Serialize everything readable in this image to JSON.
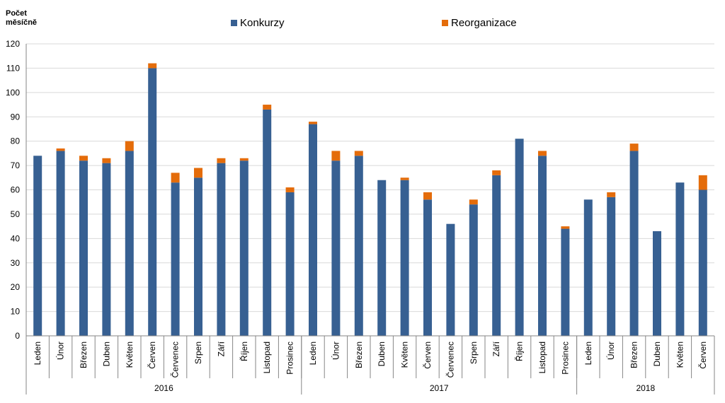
{
  "colors": {
    "konkurzy": "#376092",
    "reorganizace": "#e46c0a"
  },
  "chart_data": {
    "type": "bar",
    "stacked": true,
    "ylabel": "Počet\nměsíčně",
    "ylim": [
      0,
      120
    ],
    "yticks": [
      0,
      10,
      20,
      30,
      40,
      50,
      60,
      70,
      80,
      90,
      100,
      110,
      120
    ],
    "grid": true,
    "legend_position": "top",
    "categories": [
      "Leden",
      "Únor",
      "Březen",
      "Duben",
      "Květen",
      "Červen",
      "Červenec",
      "Srpen",
      "Září",
      "Říjen",
      "Listopad",
      "Prosinec",
      "Leden",
      "Únor",
      "Březen",
      "Duben",
      "Květen",
      "Červen",
      "Červenec",
      "Srpen",
      "Září",
      "Říjen",
      "Listopad",
      "Prosinec",
      "Leden",
      "Únor",
      "Březen",
      "Duben",
      "Květen",
      "Červen"
    ],
    "groups": [
      {
        "label": "2016",
        "count": 12
      },
      {
        "label": "2017",
        "count": 12
      },
      {
        "label": "2018",
        "count": 6
      }
    ],
    "series": [
      {
        "name": "Konkurzy",
        "values": [
          74,
          76,
          72,
          71,
          76,
          110,
          63,
          65,
          71,
          72,
          93,
          59,
          87,
          72,
          74,
          64,
          64,
          56,
          46,
          54,
          66,
          81,
          74,
          44,
          56,
          57,
          76,
          43,
          63,
          60
        ]
      },
      {
        "name": "Reorganizace",
        "values": [
          0,
          1,
          2,
          2,
          4,
          2,
          4,
          4,
          2,
          1,
          2,
          2,
          1,
          4,
          2,
          0,
          1,
          3,
          0,
          2,
          2,
          0,
          2,
          1,
          0,
          2,
          3,
          0,
          0,
          6
        ]
      }
    ]
  }
}
